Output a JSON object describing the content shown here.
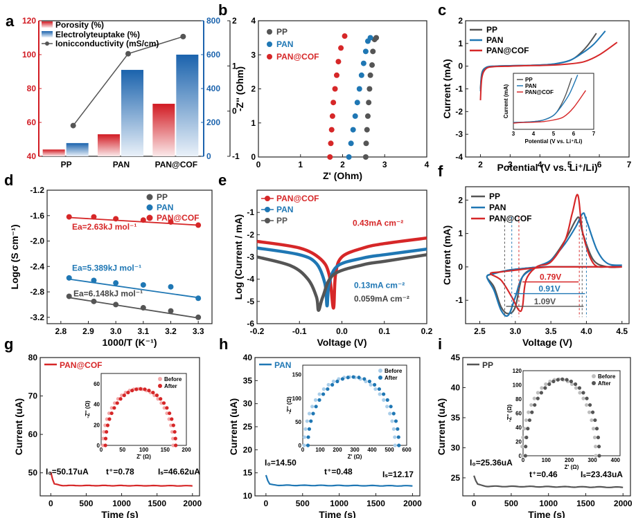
{
  "colors": {
    "pp": "#555555",
    "pan": "#1f77b4",
    "cof": "#d62728",
    "gray": "#444444"
  },
  "panel_labels": [
    "a",
    "b",
    "c",
    "d",
    "e",
    "f",
    "g",
    "h",
    "i"
  ],
  "chart_data": [
    {
      "id": "a",
      "type": "bar",
      "categories": [
        "PP",
        "PAN",
        "PAN@COF"
      ],
      "series": [
        {
          "name": "Porosity (%)",
          "values": [
            44,
            53,
            71
          ],
          "axis": "left"
        },
        {
          "name": "Electrolyteuptake (%)",
          "values": [
            78,
            510,
            600
          ],
          "axis": "right"
        },
        {
          "name": "Ionicconductivity (mS/cm)",
          "values": [
            -0.32,
            1.27,
            1.65
          ],
          "axis": "right2",
          "type": "line"
        }
      ],
      "yticks_left": [
        "40",
        "60",
        "80",
        "100",
        "120"
      ],
      "yticks_right": [
        "0",
        "200",
        "400",
        "600",
        "800"
      ],
      "yticks_right2": [
        "-1",
        "0",
        "1",
        "2"
      ],
      "ylim": [
        40,
        120
      ],
      "ylim_right": [
        0,
        800
      ],
      "ylim_right2": [
        -1,
        2
      ]
    },
    {
      "id": "b",
      "type": "scatter",
      "xlabel": "Z' (Ohm)",
      "ylabel": "-Z'' (Ohm)",
      "xlim": [
        0,
        4
      ],
      "ylim": [
        0,
        4
      ],
      "xticks": [
        "0",
        "1",
        "2",
        "3",
        "4"
      ],
      "yticks": [
        "0",
        "1",
        "2",
        "3",
        "4"
      ],
      "series": [
        {
          "name": "PP",
          "x": [
            2.55,
            2.56,
            2.58,
            2.6,
            2.62,
            2.64,
            2.66,
            2.7,
            2.72,
            2.76,
            2.8
          ],
          "y": [
            0,
            0.4,
            0.8,
            1.2,
            1.6,
            2.0,
            2.4,
            2.7,
            3.1,
            3.45,
            3.5
          ]
        },
        {
          "name": "PAN",
          "x": [
            2.15,
            2.2,
            2.25,
            2.3,
            2.35,
            2.4,
            2.45,
            2.5,
            2.55,
            2.6,
            2.66
          ],
          "y": [
            0,
            0.4,
            0.8,
            1.2,
            1.6,
            2.0,
            2.4,
            2.75,
            3.1,
            3.4,
            3.5
          ]
        },
        {
          "name": "PAN@COF",
          "x": [
            1.7,
            1.72,
            1.74,
            1.76,
            1.78,
            1.82,
            1.86,
            1.9,
            1.96,
            2.05
          ],
          "y": [
            0,
            0.4,
            0.8,
            1.2,
            1.6,
            2.0,
            2.4,
            2.8,
            3.2,
            3.55
          ]
        }
      ]
    },
    {
      "id": "c",
      "type": "line",
      "xlabel": "Potential (V vs. Li⁺/Li)",
      "ylabel": "Current (mA)",
      "xlim": [
        1.5,
        7
      ],
      "ylim": [
        -4,
        2
      ],
      "xticks": [
        "2",
        "3",
        "4",
        "5",
        "6",
        "7"
      ],
      "yticks": [
        "-4",
        "-3",
        "-2",
        "-1",
        "0",
        "1",
        "2"
      ],
      "series": [
        {
          "name": "PP",
          "x": [
            2,
            2.05,
            2.2,
            2.5,
            3,
            3.5,
            4,
            4.5,
            5,
            5.3,
            5.6,
            5.9
          ],
          "y": [
            -1,
            -0.3,
            -0.05,
            0,
            0.02,
            0.03,
            0.05,
            0.1,
            0.25,
            0.5,
            0.9,
            1.45
          ]
        },
        {
          "name": "PAN",
          "x": [
            2,
            2.05,
            2.2,
            2.5,
            3,
            3.5,
            4,
            4.5,
            5,
            5.4,
            5.8,
            6.2
          ],
          "y": [
            -1.1,
            -0.35,
            -0.05,
            0,
            0.02,
            0.03,
            0.05,
            0.1,
            0.25,
            0.55,
            0.95,
            1.55
          ]
        },
        {
          "name": "PAN@COF",
          "x": [
            2,
            2.05,
            2.2,
            2.5,
            3,
            3.5,
            4,
            4.5,
            5,
            5.5,
            6,
            6.6
          ],
          "y": [
            -1.5,
            -0.5,
            -0.1,
            -0.02,
            0,
            0.02,
            0.03,
            0.05,
            0.1,
            0.2,
            0.5,
            1.05
          ]
        }
      ],
      "inset": {
        "xlabel": "Potential (V vs. Li⁺/Li)",
        "ylabel": "Current (mA)",
        "xticks": [
          "3",
          "4",
          "5",
          "6",
          "7"
        ],
        "xlim": [
          3,
          7
        ]
      }
    },
    {
      "id": "d",
      "type": "scatter",
      "xlabel": "1000/T (K⁻¹)",
      "ylabel": "Logσ (S cm⁻¹)",
      "xlim": [
        2.75,
        3.35
      ],
      "ylim": [
        -3.3,
        -1.2
      ],
      "xticks": [
        "2.8",
        "2.9",
        "3.0",
        "3.1",
        "3.2",
        "3.3"
      ],
      "yticks": [
        "-3.2",
        "-2.8",
        "-2.4",
        "-2.0",
        "-1.6",
        "-1.2"
      ],
      "x": [
        2.83,
        2.92,
        3.0,
        3.1,
        3.2,
        3.3
      ],
      "series": [
        {
          "name": "PP",
          "values": [
            -2.87,
            -2.95,
            -3.0,
            -3.05,
            -3.1,
            -3.2
          ],
          "fit": [
            -2.89,
            -3.21
          ]
        },
        {
          "name": "PAN",
          "values": [
            -2.58,
            -2.62,
            -2.66,
            -2.69,
            -2.72,
            -2.9
          ],
          "fit": [
            -2.6,
            -2.89
          ]
        },
        {
          "name": "PAN@COF",
          "values": [
            -1.62,
            -1.62,
            -1.65,
            -1.67,
            -1.7,
            -1.75
          ],
          "fit": [
            -1.63,
            -1.75
          ]
        }
      ],
      "annotations": [
        "Ea=2.63kJ mol⁻¹",
        "Ea=5.389kJ mol⁻¹",
        "Ea=6.148kJ mol⁻¹"
      ]
    },
    {
      "id": "e",
      "type": "line",
      "xlabel": "Voltage (V)",
      "ylabel": "Log (Current / mA)",
      "xlim": [
        -0.2,
        0.2
      ],
      "ylim": [
        -6,
        0
      ],
      "xticks": [
        "-0.2",
        "-0.1",
        "0.0",
        "0.1",
        "0.2"
      ],
      "yticks": [
        "-6",
        "-5",
        "-4",
        "-3",
        "-2",
        "-1"
      ],
      "series": [
        {
          "name": "PAN@COF",
          "x": [
            -0.2,
            -0.1,
            -0.05,
            -0.03,
            -0.02,
            -0.015,
            0.0,
            0.05,
            0.1,
            0.2
          ],
          "y": [
            -2.3,
            -2.6,
            -3.1,
            -3.8,
            -5.3,
            -3.8,
            -3.0,
            -2.6,
            -2.4,
            -2.15
          ]
        },
        {
          "name": "PAN",
          "x": [
            -0.2,
            -0.1,
            -0.06,
            -0.04,
            -0.035,
            -0.03,
            -0.01,
            0.05,
            0.1,
            0.2
          ],
          "y": [
            -2.6,
            -2.9,
            -3.3,
            -4.2,
            -5.2,
            -4.2,
            -3.4,
            -3.05,
            -2.9,
            -2.65
          ]
        },
        {
          "name": "PP",
          "x": [
            -0.2,
            -0.12,
            -0.08,
            -0.06,
            -0.055,
            -0.045,
            -0.02,
            0.05,
            0.1,
            0.2
          ],
          "y": [
            -3.0,
            -3.4,
            -4.0,
            -4.8,
            -5.4,
            -4.8,
            -3.8,
            -3.35,
            -3.2,
            -2.9
          ]
        }
      ],
      "annotations": [
        "0.43mA cm⁻²",
        "0.13mA cm⁻²",
        "0.059mA cm⁻²"
      ]
    },
    {
      "id": "f",
      "type": "line",
      "xlabel": "Voltage (V)",
      "ylabel": "Current (mA)",
      "xlim": [
        2.3,
        4.6
      ],
      "ylim": [
        -1.7,
        2.4
      ],
      "xticks": [
        "2.5",
        "3.0",
        "3.5",
        "4.0",
        "4.5"
      ],
      "yticks": [
        "-1",
        "0",
        "1",
        "2"
      ],
      "series": [
        {
          "name": "PP",
          "x": [
            4.5,
            4.3,
            4.1,
            3.95,
            3.9,
            3.85,
            3.7,
            3.5,
            3.3,
            3.1,
            3.0,
            2.9,
            2.8,
            2.7,
            2.6,
            2.7,
            2.9,
            3.1,
            3.4,
            3.7,
            3.9,
            4.1,
            4.3,
            4.5
          ],
          "y": [
            0,
            0,
            0.2,
            1.0,
            1.45,
            1.4,
            0.8,
            0.2,
            0,
            -0.3,
            -1.2,
            -1.4,
            -1.2,
            -0.6,
            -0.3,
            -0.2,
            -0.1,
            -0.05,
            0,
            0,
            0,
            0,
            0,
            0
          ]
        },
        {
          "name": "PAN",
          "x": [
            4.5,
            4.3,
            4.15,
            4.0,
            3.95,
            3.85,
            3.7,
            3.5,
            3.3,
            3.1,
            3.0,
            2.9,
            2.8,
            2.7,
            2.6,
            2.7,
            2.9,
            3.1,
            3.4,
            3.7,
            3.9,
            4.1,
            4.3,
            4.5
          ],
          "y": [
            0.05,
            0.1,
            0.5,
            1.4,
            1.6,
            1.2,
            0.7,
            0.2,
            0,
            -0.3,
            -0.9,
            -1.45,
            -1.3,
            -0.7,
            -0.3,
            -0.2,
            -0.1,
            -0.05,
            0,
            0,
            0,
            0,
            0,
            0.05
          ]
        },
        {
          "name": "PAN@COF",
          "x": [
            4.5,
            4.3,
            4.1,
            3.95,
            3.88,
            3.8,
            3.7,
            3.5,
            3.3,
            3.15,
            3.1,
            3.05,
            2.95,
            2.8,
            2.65,
            2.8,
            3.0,
            3.2,
            3.5,
            3.75,
            3.95,
            4.2,
            4.4,
            4.5
          ],
          "y": [
            0,
            0,
            0.1,
            1.0,
            2.15,
            1.6,
            0.8,
            0.15,
            0,
            -0.4,
            -1.2,
            -1.3,
            -0.9,
            -0.4,
            -0.2,
            -0.15,
            -0.1,
            -0.05,
            0,
            0,
            0,
            0,
            0,
            0
          ]
        }
      ],
      "annotations": [
        "0.79V",
        "0.91V",
        "1.09V"
      ]
    },
    {
      "id": "g",
      "type": "line",
      "xlabel": "Time (s)",
      "ylabel": "Current (uA)",
      "xlim": [
        -150,
        2100
      ],
      "ylim": [
        44,
        80
      ],
      "xticks": [
        "0",
        "500",
        "1000",
        "1500",
        "2000"
      ],
      "yticks": [
        "50",
        "60",
        "70",
        "80"
      ],
      "series": [
        {
          "name": "PAN@COF",
          "x": [
            0,
            40,
            150,
            500,
            1000,
            1500,
            2000
          ],
          "y": [
            50.17,
            47.2,
            46.7,
            46.6,
            46.62,
            46.6,
            46.62
          ]
        }
      ],
      "annotations": [
        "I₀=50.17uA",
        "t⁺=0.78",
        "Iₛ=46.62uA"
      ],
      "inset": {
        "xlabel": "Z' (Ω)",
        "ylabel": "-Z'' (Ω)",
        "xticks": [
          "0",
          "50",
          "100",
          "150",
          "200"
        ],
        "yticks": [
          "0",
          "20",
          "40",
          "60"
        ],
        "legend": [
          "Before",
          "After"
        ],
        "xlim": [
          0,
          200
        ],
        "ylim": [
          0,
          70
        ],
        "peak": [
          80,
          55
        ],
        "x0": 10,
        "x1": 175,
        "before_shift": -6
      }
    },
    {
      "id": "h",
      "type": "line",
      "xlabel": "Time (s)",
      "ylabel": "Current (uA)",
      "xlim": [
        -150,
        2100
      ],
      "ylim": [
        10,
        40
      ],
      "xticks": [
        "0",
        "500",
        "1000",
        "1500",
        "2000"
      ],
      "yticks": [
        "10",
        "15",
        "20",
        "25",
        "30",
        "35",
        "40"
      ],
      "series": [
        {
          "name": "PAN",
          "x": [
            0,
            40,
            150,
            500,
            1000,
            1500,
            2000
          ],
          "y": [
            14.5,
            12.6,
            12.3,
            12.2,
            12.17,
            12.15,
            12.17
          ]
        }
      ],
      "annotations": [
        "I₀=14.50",
        "t⁺=0.48",
        "Iₛ=12.17"
      ],
      "inset": {
        "xlabel": "Z' (Ω)",
        "ylabel": "-Z'' (Ω)",
        "xticks": [
          "0",
          "100",
          "200",
          "300",
          "400",
          "500",
          "600"
        ],
        "yticks": [
          "0",
          "50",
          "100",
          "150"
        ],
        "legend": [
          "Before",
          "After"
        ],
        "xlim": [
          0,
          600
        ],
        "ylim": [
          0,
          170
        ],
        "peak": [
          280,
          145
        ],
        "x0": 30,
        "x1": 555,
        "before_shift": -22
      }
    },
    {
      "id": "i",
      "type": "line",
      "xlabel": "Time (s)",
      "ylabel": "Current (uA)",
      "xlim": [
        -150,
        2100
      ],
      "ylim": [
        22,
        45
      ],
      "xticks": [
        "0",
        "500",
        "1000",
        "1500",
        "2000"
      ],
      "yticks": [
        "25",
        "30",
        "35",
        "40",
        "45"
      ],
      "series": [
        {
          "name": "PP",
          "x": [
            0,
            40,
            150,
            500,
            1000,
            1500,
            2000
          ],
          "y": [
            25.36,
            24.0,
            23.6,
            23.5,
            23.43,
            23.45,
            23.43
          ]
        }
      ],
      "annotations": [
        "I₀=25.36uA",
        "t⁺=0.46",
        "Iₛ=23.43uA"
      ],
      "inset": {
        "xlabel": "Z' (Ω)",
        "ylabel": "-Z'' (Ω)",
        "xticks": [
          "0",
          "100",
          "200",
          "300",
          "400"
        ],
        "yticks": [
          "0",
          "20",
          "40",
          "60",
          "80",
          "100",
          "120"
        ],
        "legend": [
          "Before",
          "After"
        ],
        "xlim": [
          0,
          420
        ],
        "ylim": [
          0,
          120
        ],
        "peak": [
          170,
          108
        ],
        "x0": 10,
        "x1": 330,
        "before_shift": -15
      }
    }
  ]
}
